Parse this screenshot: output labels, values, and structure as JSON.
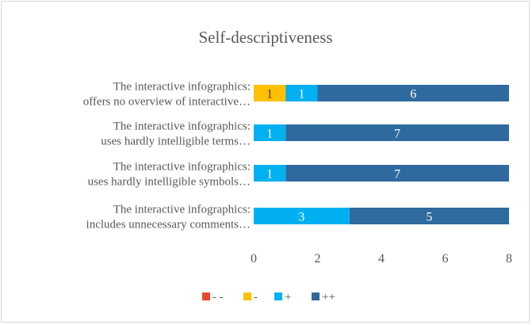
{
  "chart_data": {
    "type": "bar",
    "orientation": "horizontal",
    "stacked": true,
    "title": "Self-descriptiveness",
    "categories": [
      [
        "The interactive infographics:",
        "offers no overview of interactive…"
      ],
      [
        "The interactive infographics:",
        "uses hardly intelligible terms…"
      ],
      [
        "The interactive infographics:",
        "uses hardly intelligible symbols…"
      ],
      [
        "The interactive infographics:",
        "includes unnecessary comments…"
      ]
    ],
    "series": [
      {
        "name": "- -",
        "color": "#E8482E",
        "values": [
          0,
          0,
          0,
          0
        ]
      },
      {
        "name": "-",
        "color": "#FFC000",
        "values": [
          1,
          0,
          0,
          0
        ]
      },
      {
        "name": "+",
        "color": "#00B0F0",
        "values": [
          1,
          1,
          1,
          3
        ]
      },
      {
        "name": "++",
        "color": "#2E6A9E",
        "values": [
          6,
          7,
          7,
          5
        ]
      }
    ],
    "xlim": [
      0,
      8
    ],
    "xticks": [
      "0",
      "2",
      "4",
      "6",
      "8"
    ],
    "grid": false,
    "legend": "bottom"
  }
}
